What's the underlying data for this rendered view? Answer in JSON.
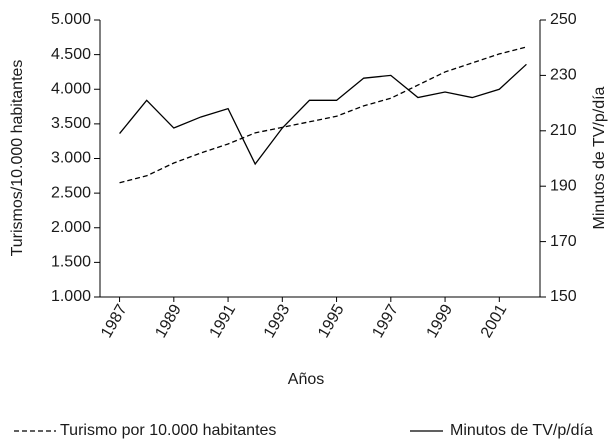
{
  "chart_data": {
    "type": "line",
    "x_label": "Años",
    "y_label": "Turismos/10.000 habitantes",
    "y2_label": "Minutos de TV/p/día",
    "categories": [
      "1987",
      null,
      "1989",
      null,
      "1991",
      null,
      "1993",
      null,
      "1995",
      null,
      "1997",
      null,
      "1999",
      null,
      "2001",
      null
    ],
    "series": [
      {
        "name": "Turismo por 10.000 habitantes",
        "color": "#000000",
        "dash": true,
        "values": [
          2650,
          2750,
          2935,
          3080,
          3210,
          3370,
          3450,
          3530,
          3610,
          3760,
          3870,
          4060,
          4250,
          4380,
          4510,
          4610
        ]
      },
      {
        "name": "Minutos de TV/p/día",
        "color": "#000000",
        "dash": false,
        "axis": "y2",
        "values": [
          209,
          221,
          211,
          215,
          218,
          198,
          211,
          221,
          221,
          229,
          230,
          222,
          224,
          222,
          225,
          234
        ]
      }
    ],
    "ylim": [
      1000,
      5000
    ],
    "yticks": [
      {
        "value": 1000,
        "label": "1.000"
      },
      {
        "value": 1500,
        "label": "1.500"
      },
      {
        "value": 2000,
        "label": "2.000"
      },
      {
        "value": 2500,
        "label": "2.500"
      },
      {
        "value": 3000,
        "label": "3.000"
      },
      {
        "value": 3500,
        "label": "3.500"
      },
      {
        "value": 4000,
        "label": "4.000"
      },
      {
        "value": 4500,
        "label": "4.500"
      },
      {
        "value": 5000,
        "label": "5.000"
      }
    ],
    "y2lim": [
      150,
      250
    ],
    "y2ticks": [
      150,
      170,
      190,
      210,
      230,
      250
    ],
    "grid": false
  }
}
